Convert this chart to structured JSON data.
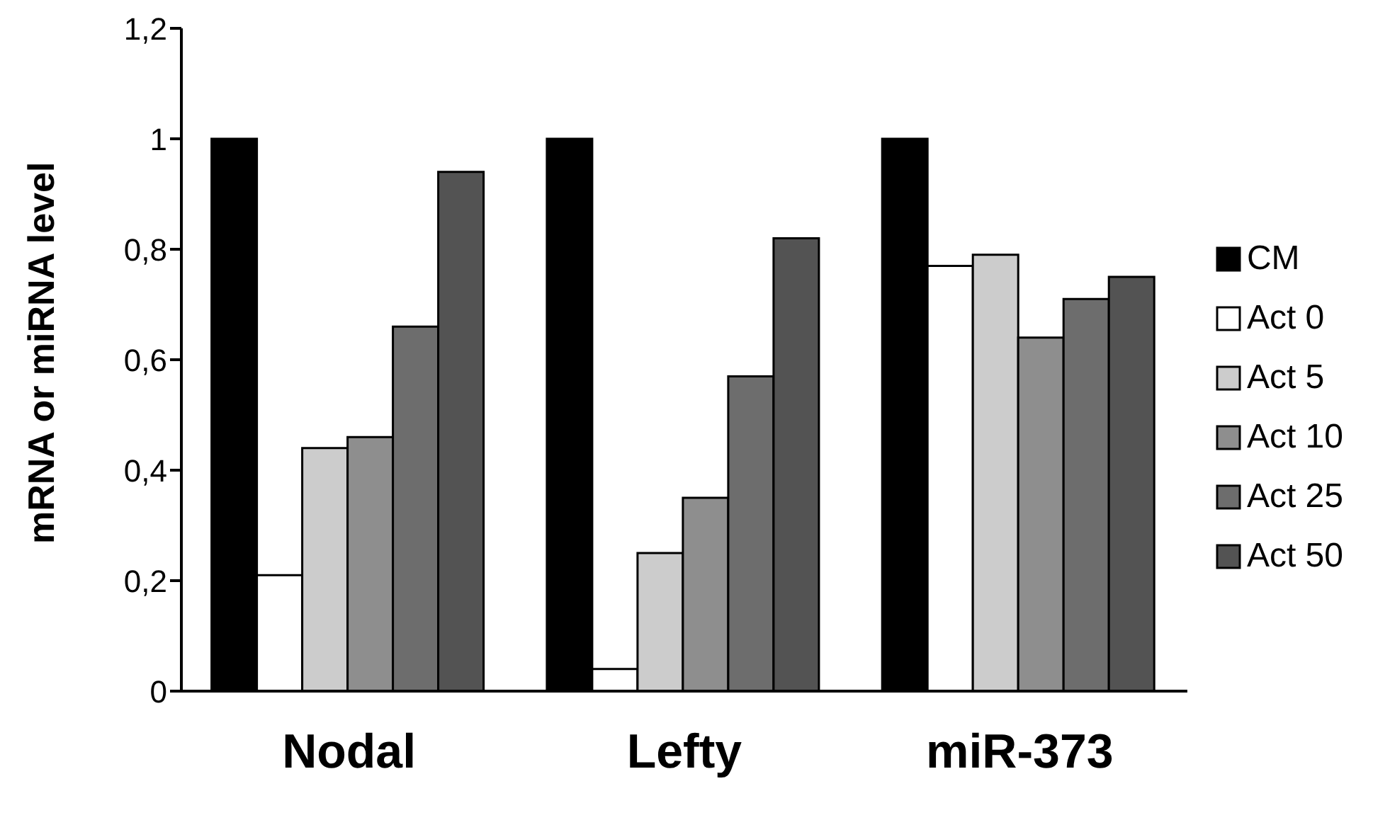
{
  "chart_data": {
    "type": "bar",
    "ylabel": "mRNA or miRNA level",
    "categories": [
      "Nodal",
      "Lefty",
      "miR-373"
    ],
    "series": [
      {
        "name": "CM",
        "color": "#000000",
        "values": [
          1,
          1,
          1
        ]
      },
      {
        "name": "Act 0",
        "color": "#ffffff",
        "values": [
          0.21,
          0.04,
          0.77
        ]
      },
      {
        "name": "Act 5",
        "color": "#cccccc",
        "values": [
          0.44,
          0.25,
          0.79
        ]
      },
      {
        "name": "Act 10",
        "color": "#8e8e8e",
        "values": [
          0.46,
          0.35,
          0.64
        ]
      },
      {
        "name": "Act 25",
        "color": "#6d6d6d",
        "values": [
          0.66,
          0.57,
          0.71
        ]
      },
      {
        "name": "Act 50",
        "color": "#535353",
        "values": [
          0.94,
          0.82,
          0.75
        ]
      }
    ],
    "ylim": [
      0,
      1.2
    ],
    "yticks": [
      0,
      {
        "value": 0.2,
        "label": "0,2"
      },
      {
        "value": 0.4,
        "label": "0,4"
      },
      {
        "value": 0.6,
        "label": "0,6"
      },
      {
        "value": 0.8,
        "label": "0,8"
      },
      1,
      {
        "value": 1.2,
        "label": "1,2"
      }
    ],
    "legend": "right"
  }
}
